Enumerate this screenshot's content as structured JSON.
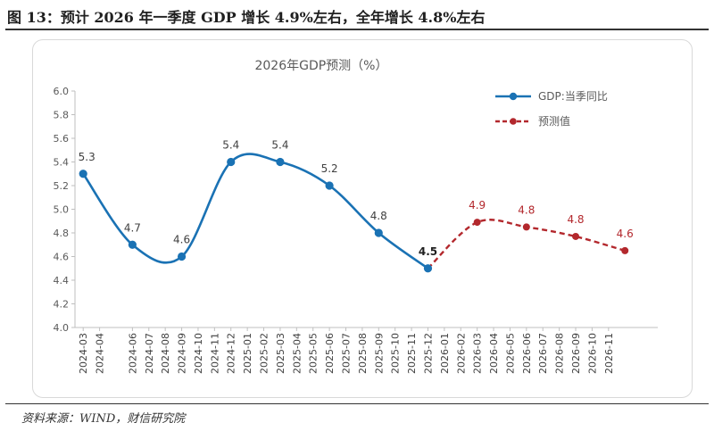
{
  "figure": {
    "title": "图 13：预计 2026 年一季度 GDP 增长 4.9%左右，全年增长 4.8%左右",
    "source": "资料来源：WIND，财信研究院"
  },
  "colors": {
    "actual": "#1a72b4",
    "forecast": "#b3282d",
    "text": "#595959",
    "grid": "#d9d9d9"
  },
  "chart_data": {
    "type": "line",
    "title": "2026年GDP预测（%）",
    "ylim": [
      4.0,
      6.0
    ],
    "yticks": [
      "4.0",
      "4.2",
      "4.4",
      "4.6",
      "4.8",
      "5.0",
      "5.2",
      "5.4",
      "5.6",
      "5.8",
      "6.0"
    ],
    "categories": [
      "2024-03",
      "2024-04",
      "2024-06",
      "2024-07",
      "2024-08",
      "2024-09",
      "2024-10",
      "2024-11",
      "2024-12",
      "2025-01",
      "2025-02",
      "2025-03",
      "2025-04",
      "2025-05",
      "2025-06",
      "2025-07",
      "2025-08",
      "2025-09",
      "2025-10",
      "2025-11",
      "2025-12",
      "2026-01",
      "2026-02",
      "2026-03",
      "2026-04",
      "2026-05",
      "2026-06",
      "2026-07",
      "2026-08",
      "2026-09",
      "2026-10",
      "2026-11"
    ],
    "grid": false,
    "legend_position": "top-right",
    "series": [
      {
        "name": "GDP:当季同比",
        "style": "solid-smooth",
        "points": [
          {
            "x": "2024-03",
            "y": 5.3,
            "label": "5.3"
          },
          {
            "x": "2024-06",
            "y": 4.7,
            "label": "4.7"
          },
          {
            "x": "2024-09",
            "y": 4.6,
            "label": "4.6"
          },
          {
            "x": "2024-12",
            "y": 5.4,
            "label": "5.4"
          },
          {
            "x": "2025-03",
            "y": 5.4,
            "label": "5.4"
          },
          {
            "x": "2025-06",
            "y": 5.2,
            "label": "5.2"
          },
          {
            "x": "2025-09",
            "y": 4.8,
            "label": "4.8"
          },
          {
            "x": "2025-12",
            "y": 4.5,
            "label": "4.5"
          }
        ]
      },
      {
        "name": "预测值",
        "style": "dashed-smooth",
        "points": [
          {
            "x": "2025-12",
            "y": 4.5,
            "label": ""
          },
          {
            "x": "2026-03",
            "y": 4.89,
            "label": "4.9"
          },
          {
            "x": "2026-06",
            "y": 4.85,
            "label": "4.8"
          },
          {
            "x": "2026-09",
            "y": 4.77,
            "label": "4.8"
          },
          {
            "x": "2026-12",
            "y": 4.65,
            "label": "4.6"
          }
        ]
      }
    ]
  }
}
